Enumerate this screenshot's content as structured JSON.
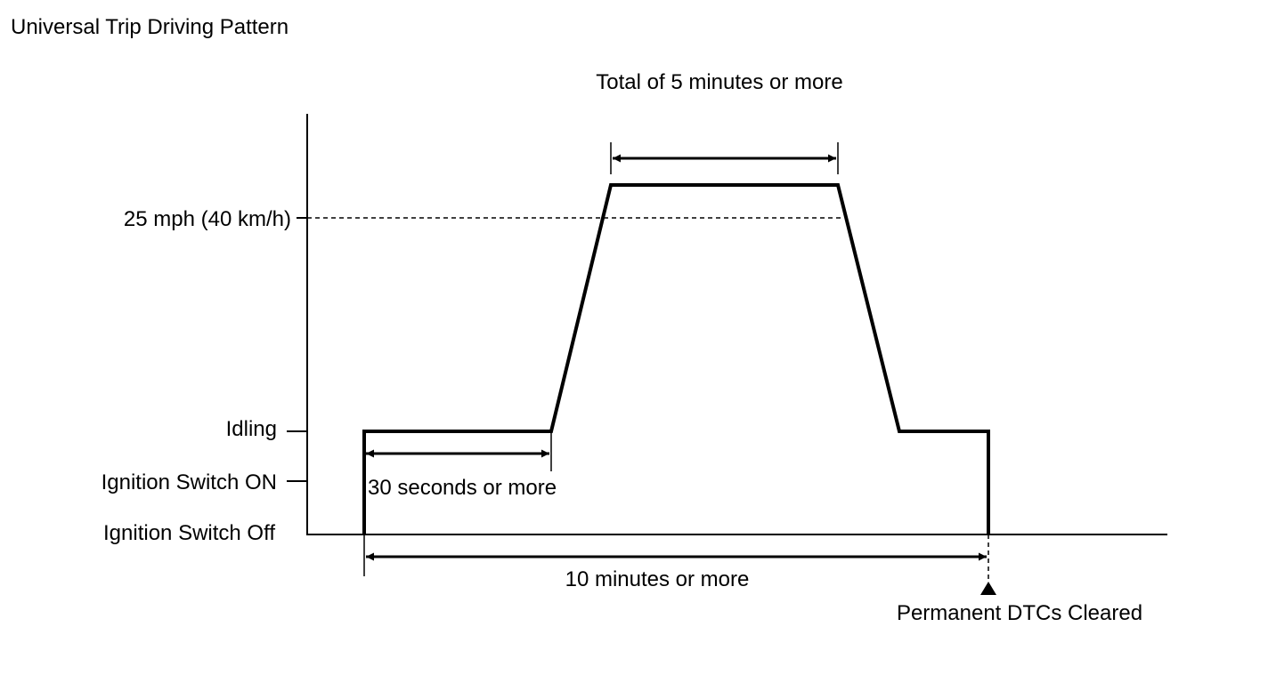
{
  "title": "Universal Trip Driving Pattern",
  "y_levels": {
    "speed": "25 mph (40 km/h)",
    "idling": "Idling",
    "ignition_on": "Ignition Switch ON",
    "ignition_off": "Ignition Switch Off"
  },
  "annotations": {
    "total_time": "Total of 5 minutes or more",
    "idle_time": "30 seconds or more",
    "overall_time": "10 minutes or more",
    "end_marker": "Permanent DTCs Cleared"
  },
  "colors": {
    "line": "#000000",
    "background": "#ffffff"
  }
}
